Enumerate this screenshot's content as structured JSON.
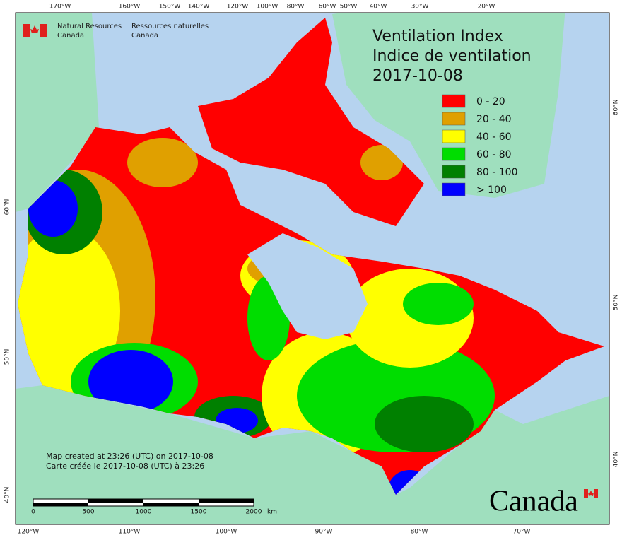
{
  "header": {
    "agency_en": [
      "Natural Resources",
      "Canada"
    ],
    "agency_fr": [
      "Ressources naturelles",
      "Canada"
    ]
  },
  "title": [
    "Ventilation Index",
    "Indice de ventilation"
  ],
  "date": "2017-10-08",
  "legend": [
    {
      "label": "0 - 20",
      "color": "#ff0000"
    },
    {
      "label": "20 - 40",
      "color": "#e0a000"
    },
    {
      "label": "40 - 60",
      "color": "#ffff00"
    },
    {
      "label": "60 - 80",
      "color": "#00dd00"
    },
    {
      "label": "80 - 100",
      "color": "#008000"
    },
    {
      "label": "> 100",
      "color": "#0000ff"
    }
  ],
  "lon_labels_top": [
    "170°W",
    "160°W",
    "150°W",
    "140°W",
    "120°W",
    "100°W",
    "80°W",
    "60°W",
    "50°W",
    "40°W",
    "30°W",
    "20°W"
  ],
  "lon_labels_bottom": [
    "120°W",
    "110°W",
    "100°W",
    "90°W",
    "80°W",
    "70°W"
  ],
  "lat_labels_left": [
    "60°N",
    "50°N",
    "40°N"
  ],
  "lat_labels_right": [
    "60°N",
    "50°N",
    "40°N"
  ],
  "credits": [
    "Map created at 23:26 (UTC) on 2017-10-08",
    "Carte créée le 2017-10-08 (UTC) à 23:26"
  ],
  "scale_bar": {
    "labels": [
      "0",
      "500",
      "1000",
      "1500",
      "2000"
    ],
    "unit": "km"
  },
  "wordmark": "Canada"
}
